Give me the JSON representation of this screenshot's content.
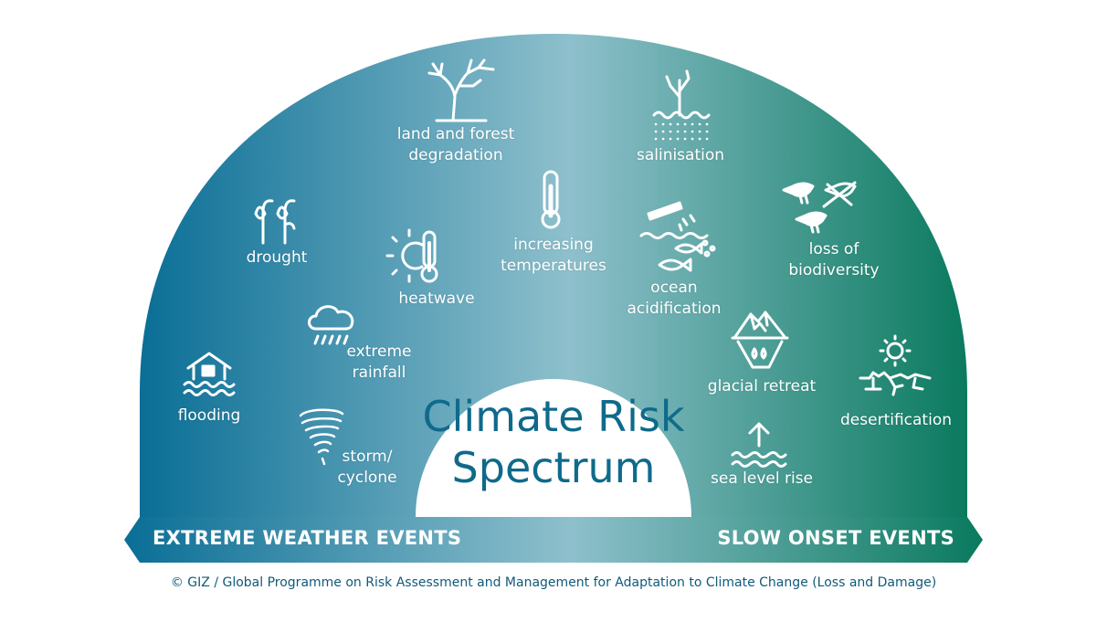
{
  "title": [
    "Climate Risk",
    "Spectrum"
  ],
  "colors": {
    "left": "#0a6e96",
    "middle": "#8ec0cc",
    "right": "#0a7a5e",
    "title": "#0f6a8b"
  },
  "arrow": {
    "left_label": "EXTREME WEATHER EVENTS",
    "right_label": "SLOW ONSET EVENTS"
  },
  "items": {
    "flooding": {
      "icon": "flooded-house-icon",
      "lines": [
        "flooding"
      ]
    },
    "drought": {
      "icon": "wilted-plants-icon",
      "lines": [
        "drought"
      ]
    },
    "storm": {
      "icon": "tornado-icon",
      "lines": [
        "storm/",
        "cyclone"
      ]
    },
    "rainfall": {
      "icon": "rain-cloud-icon",
      "lines": [
        "extreme",
        "rainfall"
      ]
    },
    "heatwave": {
      "icon": "sun-thermometer-icon",
      "lines": [
        "heatwave"
      ]
    },
    "degradation": {
      "icon": "bare-tree-icon",
      "lines": [
        "land and forest",
        "degradation"
      ]
    },
    "temperatures": {
      "icon": "thermometer-icon",
      "lines": [
        "increasing",
        "temperatures"
      ]
    },
    "salinisation": {
      "icon": "salt-plant-icon",
      "lines": [
        "salinisation"
      ]
    },
    "acidification": {
      "icon": "test-tube-fish-icon",
      "lines": [
        "ocean",
        "acidification"
      ]
    },
    "biodiversity": {
      "icon": "birds-icon",
      "lines": [
        "loss of",
        "biodiversity"
      ]
    },
    "glacial": {
      "icon": "iceberg-icon",
      "lines": [
        "glacial retreat"
      ]
    },
    "desertification": {
      "icon": "sun-cracked-ground-icon",
      "lines": [
        "desertification"
      ]
    },
    "sealevel": {
      "icon": "wave-arrow-icon",
      "lines": [
        "sea level rise"
      ]
    }
  },
  "credit": "© GIZ / Global Programme on Risk Assessment and Management for Adaptation to Climate Change (Loss and Damage)"
}
